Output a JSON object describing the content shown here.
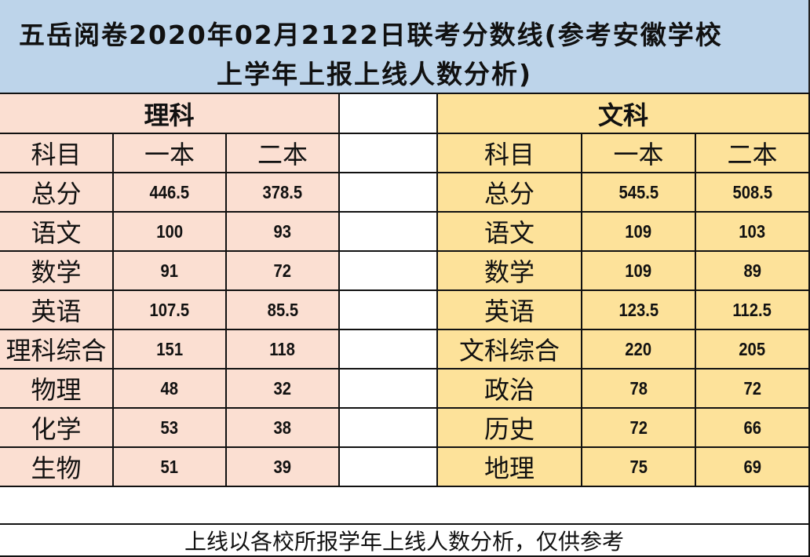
{
  "title": {
    "line1": "五岳阅卷2020年02月2122日联考分数线(参考安徽学校",
    "line2": "上学年上报上线人数分析)"
  },
  "colors": {
    "title_bg": "#bdd4ea",
    "science_bg": "#fbdfd2",
    "liberal_bg": "#fde29a"
  },
  "science": {
    "group_label": "理科",
    "headers": [
      "科目",
      "一本",
      "二本"
    ],
    "rows": [
      {
        "subject": "总分",
        "tier1": "446.5",
        "tier2": "378.5"
      },
      {
        "subject": "语文",
        "tier1": "100",
        "tier2": "93"
      },
      {
        "subject": "数学",
        "tier1": "91",
        "tier2": "72"
      },
      {
        "subject": "英语",
        "tier1": "107.5",
        "tier2": "85.5"
      },
      {
        "subject": "理科综合",
        "tier1": "151",
        "tier2": "118"
      },
      {
        "subject": "物理",
        "tier1": "48",
        "tier2": "32"
      },
      {
        "subject": "化学",
        "tier1": "53",
        "tier2": "38"
      },
      {
        "subject": "生物",
        "tier1": "51",
        "tier2": "39"
      }
    ]
  },
  "liberal": {
    "group_label": "文科",
    "headers": [
      "科目",
      "一本",
      "二本"
    ],
    "rows": [
      {
        "subject": "总分",
        "tier1": "545.5",
        "tier2": "508.5"
      },
      {
        "subject": "语文",
        "tier1": "109",
        "tier2": "103"
      },
      {
        "subject": "数学",
        "tier1": "109",
        "tier2": "89"
      },
      {
        "subject": "英语",
        "tier1": "123.5",
        "tier2": "112.5"
      },
      {
        "subject": "文科综合",
        "tier1": "220",
        "tier2": "205"
      },
      {
        "subject": "政治",
        "tier1": "78",
        "tier2": "72"
      },
      {
        "subject": "历史",
        "tier1": "72",
        "tier2": "66"
      },
      {
        "subject": "地理",
        "tier1": "75",
        "tier2": "69"
      }
    ]
  },
  "footer": {
    "note": "上线以各校所报学年上线人数分析，仅供参考"
  }
}
